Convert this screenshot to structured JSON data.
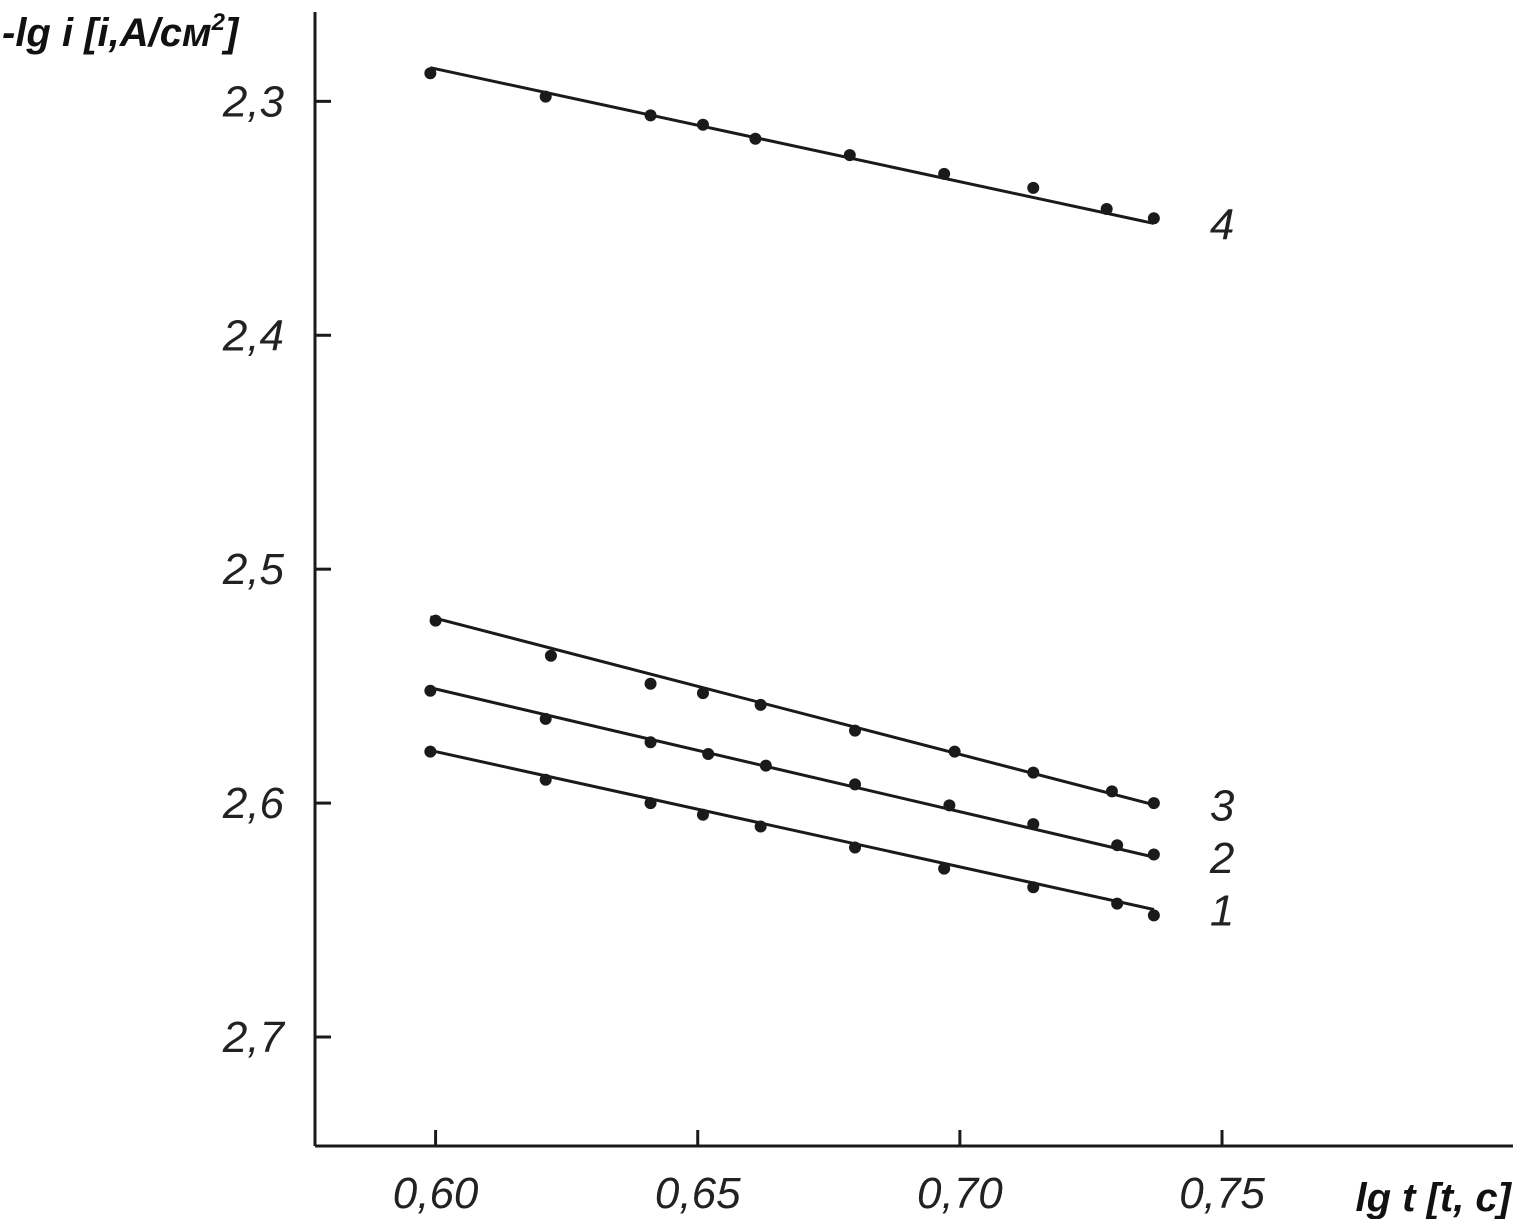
{
  "chart_data": {
    "type": "scatter",
    "ylabel": "-lg i [i,A/см",
    "ylabel_sup": "2",
    "ylabel_tail": "]",
    "xlabel": "lg t [t, c]",
    "xlim": [
      0.577,
      0.8055
    ],
    "ylim": [
      2.2618,
      2.7466
    ],
    "y_inverted": true,
    "xticks": [
      {
        "value": 0.6,
        "label": "0,60"
      },
      {
        "value": 0.65,
        "label": "0,65"
      },
      {
        "value": 0.7,
        "label": "0,70"
      },
      {
        "value": 0.75,
        "label": "0,75"
      }
    ],
    "yticks": [
      {
        "value": 2.3,
        "label": "2,3"
      },
      {
        "value": 2.4,
        "label": "2,4"
      },
      {
        "value": 2.5,
        "label": "2,5"
      },
      {
        "value": 2.6,
        "label": "2,6"
      },
      {
        "value": 2.7,
        "label": "2,7"
      }
    ],
    "series": [
      {
        "name": "1",
        "fit": {
          "x": [
            0.599,
            0.737
          ],
          "y": [
            2.5775,
            2.6455
          ]
        },
        "points": [
          [
            0.599,
            2.578
          ],
          [
            0.621,
            2.59
          ],
          [
            0.641,
            2.6
          ],
          [
            0.651,
            2.605
          ],
          [
            0.662,
            2.61
          ],
          [
            0.68,
            2.619
          ],
          [
            0.697,
            2.628
          ],
          [
            0.714,
            2.636
          ],
          [
            0.73,
            2.643
          ],
          [
            0.737,
            2.648
          ]
        ]
      },
      {
        "name": "2",
        "fit": {
          "x": [
            0.599,
            0.737
          ],
          "y": [
            2.5507,
            2.6231
          ]
        },
        "points": [
          [
            0.599,
            2.552
          ],
          [
            0.621,
            2.564
          ],
          [
            0.641,
            2.574
          ],
          [
            0.652,
            2.579
          ],
          [
            0.663,
            2.584
          ],
          [
            0.68,
            2.592
          ],
          [
            0.698,
            2.601
          ],
          [
            0.714,
            2.609
          ],
          [
            0.73,
            2.618
          ],
          [
            0.737,
            2.622
          ]
        ]
      },
      {
        "name": "3",
        "fit": {
          "x": [
            0.599,
            0.737
          ],
          "y": [
            2.5204,
            2.6007
          ]
        },
        "points": [
          [
            0.6,
            2.522
          ],
          [
            0.622,
            2.537
          ],
          [
            0.641,
            2.549
          ],
          [
            0.651,
            2.553
          ],
          [
            0.662,
            2.558
          ],
          [
            0.68,
            2.569
          ],
          [
            0.699,
            2.578
          ],
          [
            0.714,
            2.587
          ],
          [
            0.729,
            2.595
          ],
          [
            0.737,
            2.6
          ]
        ]
      },
      {
        "name": "4",
        "fit": {
          "x": [
            0.599,
            0.737
          ],
          "y": [
            2.2856,
            2.3522
          ]
        },
        "points": [
          [
            0.599,
            2.288
          ],
          [
            0.621,
            2.298
          ],
          [
            0.641,
            2.306
          ],
          [
            0.651,
            2.31
          ],
          [
            0.661,
            2.316
          ],
          [
            0.679,
            2.323
          ],
          [
            0.697,
            2.331
          ],
          [
            0.714,
            2.337
          ],
          [
            0.728,
            2.346
          ],
          [
            0.737,
            2.35
          ]
        ]
      }
    ],
    "colors": {
      "ink": "#1a1a1a"
    }
  }
}
